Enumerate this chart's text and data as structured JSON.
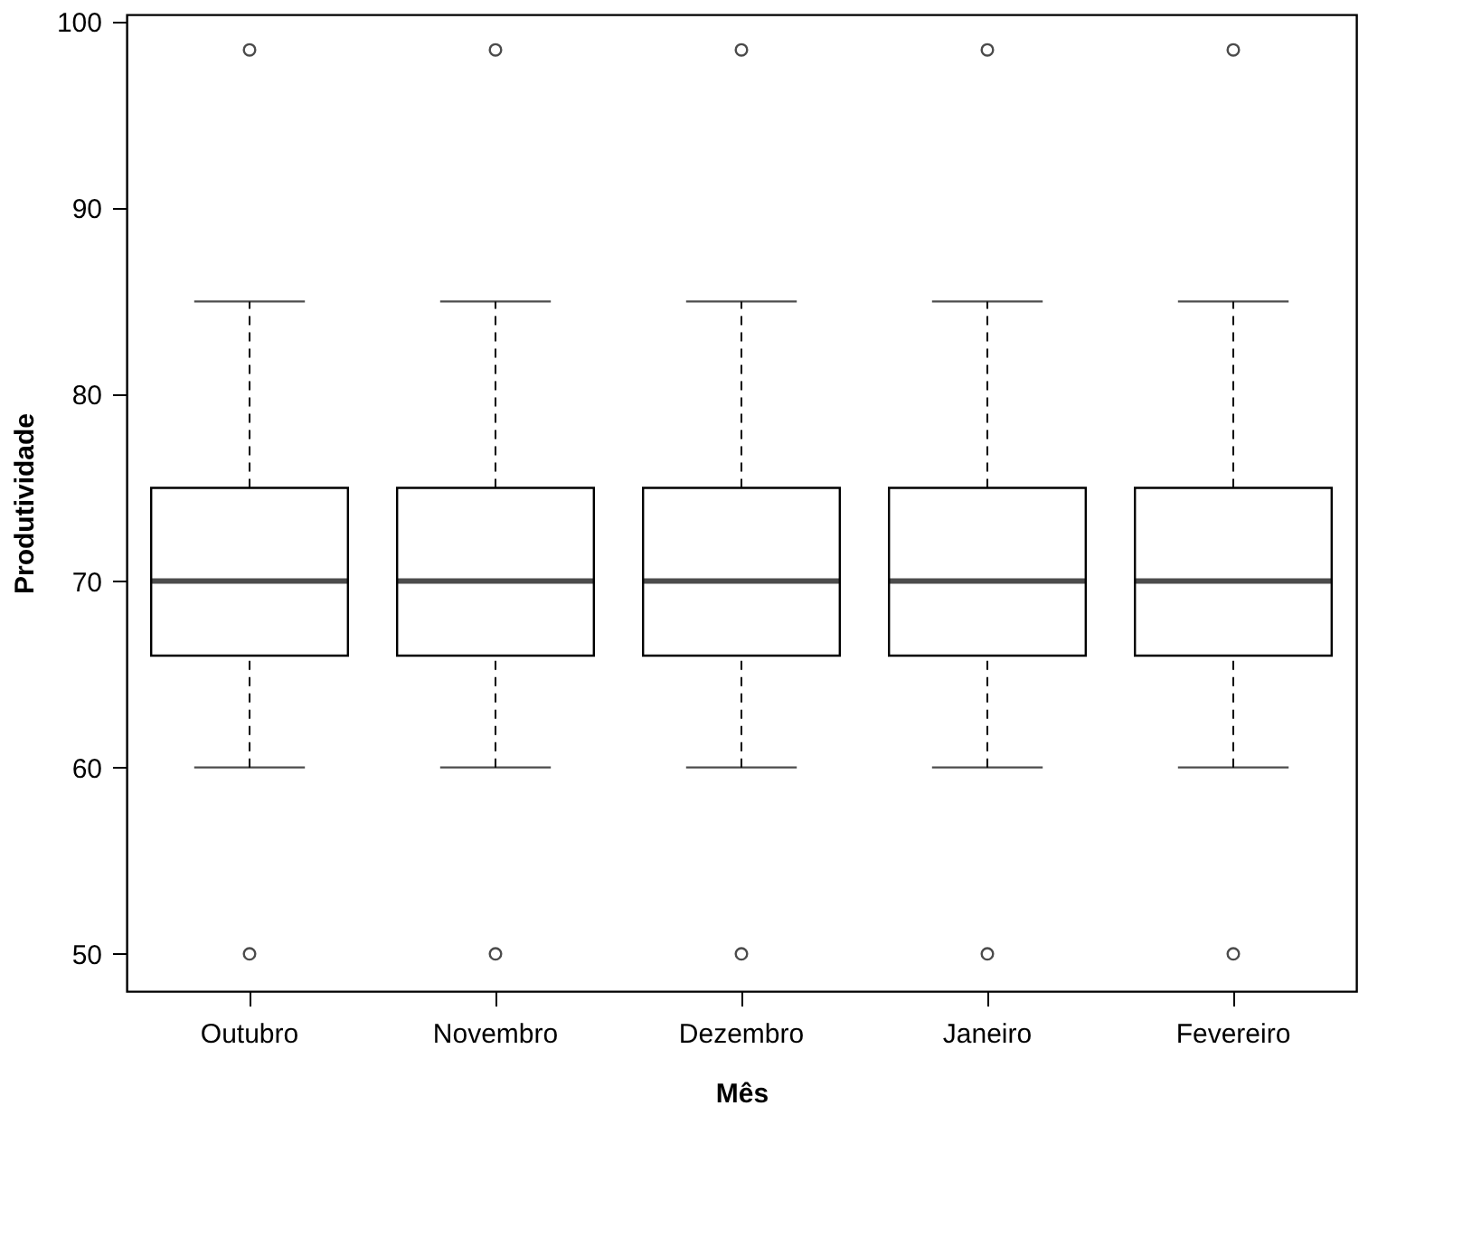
{
  "chart_data": {
    "type": "box",
    "xlabel": "Mês",
    "ylabel": "Produtividade",
    "categories": [
      "Outubro",
      "Novembro",
      "Dezembro",
      "Janeiro",
      "Fevereiro"
    ],
    "boxes": [
      {
        "low": 60,
        "q1": 66,
        "median": 70,
        "q3": 75,
        "high": 85,
        "outliers": [
          50,
          98.5
        ]
      },
      {
        "low": 60,
        "q1": 66,
        "median": 70,
        "q3": 75,
        "high": 85,
        "outliers": [
          50,
          98.5
        ]
      },
      {
        "low": 60,
        "q1": 66,
        "median": 70,
        "q3": 75,
        "high": 85,
        "outliers": [
          50,
          98.5
        ]
      },
      {
        "low": 60,
        "q1": 66,
        "median": 70,
        "q3": 75,
        "high": 85,
        "outliers": [
          50,
          98.5
        ]
      },
      {
        "low": 60,
        "q1": 66,
        "median": 70,
        "q3": 75,
        "high": 85,
        "outliers": [
          50,
          98.5
        ]
      }
    ],
    "ylim": [
      48,
      100.4
    ],
    "yticks": [
      50,
      60,
      70,
      80,
      90,
      100
    ],
    "grid": false
  }
}
